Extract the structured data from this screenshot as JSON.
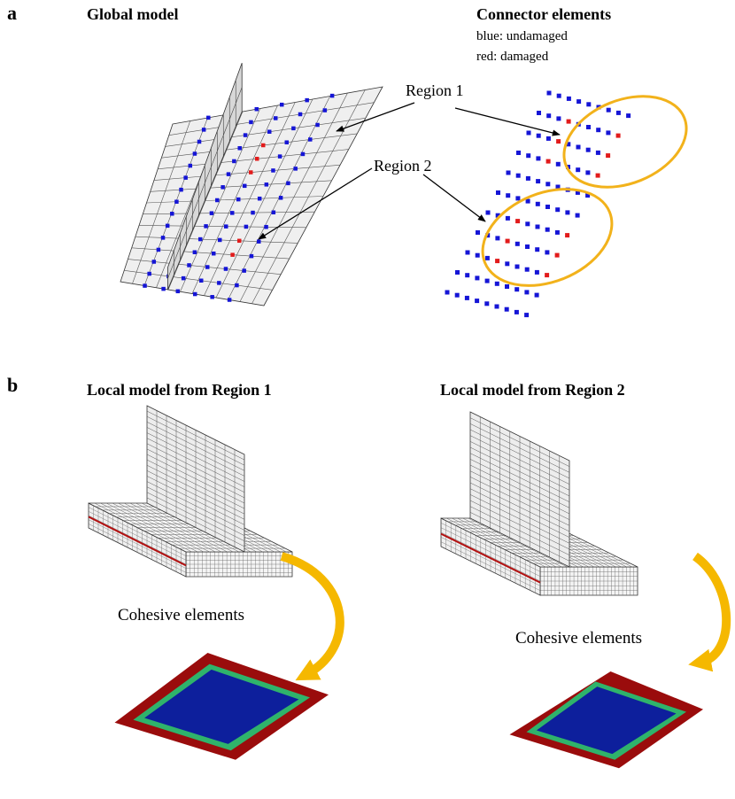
{
  "panel_a": {
    "label": "a",
    "global_model": {
      "title": "Global model"
    },
    "connector_elements": {
      "title": "Connector elements",
      "legend": [
        "blue: undamaged",
        "red: damaged"
      ]
    },
    "regions": [
      "Region 1",
      "Region 2"
    ]
  },
  "panel_b": {
    "label": "b",
    "local_models": [
      {
        "title": "Local model from Region 1",
        "cohesive_label": "Cohesive elements"
      },
      {
        "title": "Local model from Region 2",
        "cohesive_label": "Cohesive elements"
      }
    ]
  }
}
